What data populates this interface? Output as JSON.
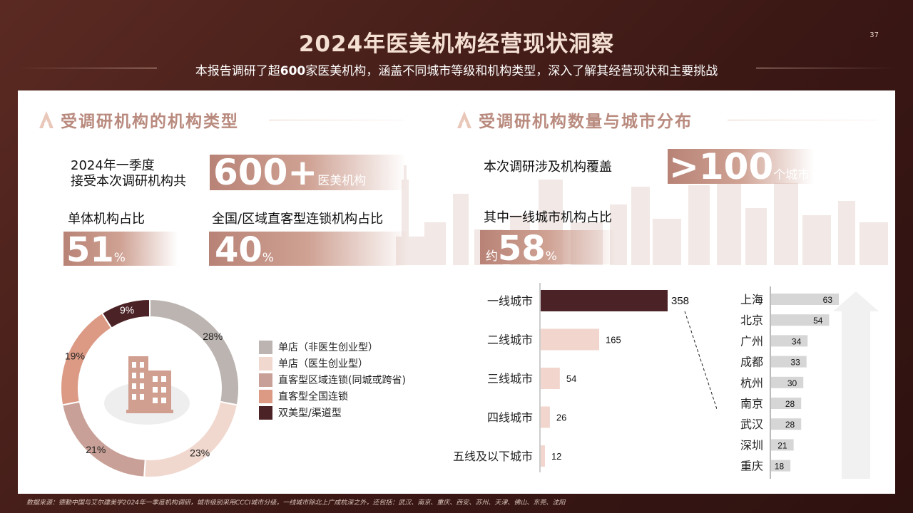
{
  "title": "2024年医美机构经营现状洞察",
  "page_number": "37",
  "subtitle": {
    "pre": "本报告调研了超",
    "bold": "600",
    "post": "家医美机构，涵盖不同城市等级和机构类型，深入了解其经营现状和主要挑战"
  },
  "left_section": {
    "title": "受调研机构的机构类型",
    "intro_line1": "2024年一季度",
    "intro_line2": "接受本次调研机构共",
    "total_value": "600+",
    "total_unit": "医美机构",
    "single_label": "单体机构占比",
    "single_value": "51",
    "single_unit": "%",
    "chain_label": "全国/区域直客型连锁机构占比",
    "chain_value": "40",
    "chain_unit": "%"
  },
  "right_section": {
    "title": "受调研机构数量与城市分布",
    "coverage_label": "本次调研涉及机构覆盖",
    "coverage_value": ">100",
    "coverage_unit": "个城市",
    "tier1_label": "其中一线城市机构占比",
    "tier1_prefix": "约",
    "tier1_value": "58",
    "tier1_unit": "%"
  },
  "footnote": "数据来源：德勤中国与艾尔建美学2024年一季度机构调研，城市级别采用CCCI城市分级，一线城市除北上广成杭深之外，还包括：武汉、南京、重庆、西安、苏州、天津、佛山、东莞、沈阳",
  "chart_data": [
    {
      "type": "pie",
      "categories": [
        "单店（非医生创业型）",
        "单店（医生创业型）",
        "直客型区域连锁(同城或跨省)",
        "直客型全国连锁",
        "双美型/渠道型"
      ],
      "values": [
        28,
        23,
        21,
        19,
        9
      ],
      "labels": [
        "28%",
        "23%",
        "21%",
        "19%",
        "9%"
      ],
      "colors": [
        "#bcb4b1",
        "#f1d8cf",
        "#c9a097",
        "#dc9a85",
        "#4b2226"
      ],
      "legend_position": "right"
    },
    {
      "type": "bar",
      "orientation": "horizontal",
      "categories": [
        "一线城市",
        "二线城市",
        "三线城市",
        "四线城市",
        "五线及以下城市"
      ],
      "values": [
        358,
        165,
        54,
        26,
        12
      ],
      "colors": [
        "#4b2226",
        "#f2d6ce",
        "#f2d6ce",
        "#f2d6ce",
        "#f2d6ce"
      ]
    },
    {
      "type": "bar",
      "orientation": "horizontal",
      "categories": [
        "上海",
        "北京",
        "广州",
        "成都",
        "杭州",
        "南京",
        "武汉",
        "深圳",
        "重庆"
      ],
      "values": [
        63,
        54,
        34,
        33,
        30,
        28,
        28,
        21,
        18
      ],
      "color": "#d6d6d6"
    }
  ]
}
